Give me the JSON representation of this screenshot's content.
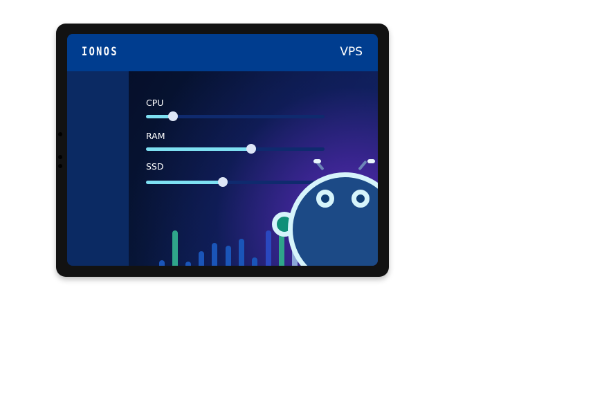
{
  "header": {
    "logo": "IONOS",
    "title": "VPS"
  },
  "sliders": [
    {
      "label": "CPU",
      "value_percent": 15
    },
    {
      "label": "RAM",
      "value_percent": 59
    },
    {
      "label": "SSD",
      "value_percent": 43
    }
  ],
  "colors": {
    "header": "#003d8f",
    "sidebar": "#0b2a63",
    "slider_fill": "#7ee0f2",
    "bar_blue": "#1a55b8",
    "bar_green": "#2fa58a"
  },
  "icons": {
    "mascot": "robot-mascot-icon"
  }
}
